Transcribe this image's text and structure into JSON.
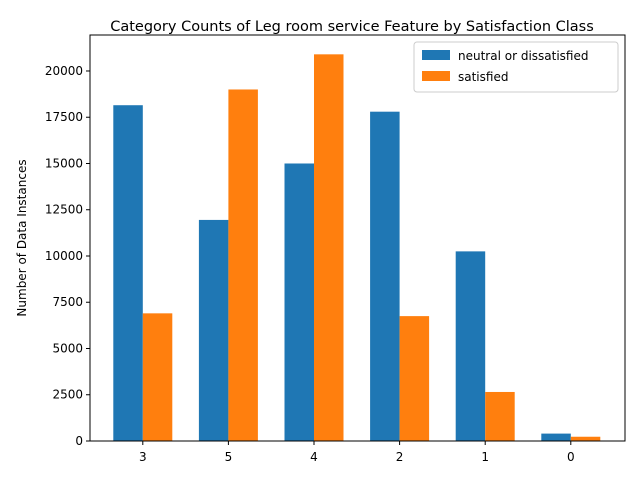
{
  "chart_data": {
    "type": "bar",
    "title": "Category Counts of Leg room service Feature by Satisfaction Class",
    "xlabel": "",
    "ylabel": "Number of Data Instances",
    "categories": [
      "3",
      "5",
      "4",
      "2",
      "1",
      "0"
    ],
    "series": [
      {
        "name": "neutral or dissatisfied",
        "color": "#1f77b4",
        "values": [
          18150,
          11950,
          15000,
          17800,
          10250,
          400
        ]
      },
      {
        "name": "satisfied",
        "color": "#ff7f0e",
        "values": [
          6900,
          19000,
          20900,
          6750,
          2650,
          230
        ]
      }
    ],
    "yticks": [
      0,
      2500,
      5000,
      7500,
      10000,
      12500,
      15000,
      17500,
      20000
    ],
    "ylim": [
      0,
      21945
    ],
    "grid": false,
    "legend": "top-right"
  }
}
